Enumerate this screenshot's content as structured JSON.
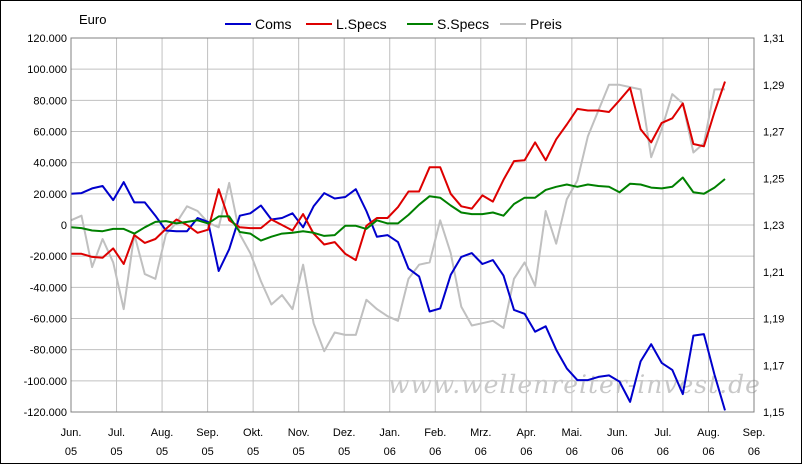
{
  "chart_data": {
    "type": "line",
    "unit_label": "Euro",
    "watermark": "www.wellenreiter-invest.de",
    "x_ticks": [
      {
        "month": "Jun.",
        "year": "05"
      },
      {
        "month": "Jul.",
        "year": "05"
      },
      {
        "month": "Aug.",
        "year": "05"
      },
      {
        "month": "Sep.",
        "year": "05"
      },
      {
        "month": "Okt.",
        "year": "05"
      },
      {
        "month": "Nov.",
        "year": "05"
      },
      {
        "month": "Dez.",
        "year": "05"
      },
      {
        "month": "Jan.",
        "year": "06"
      },
      {
        "month": "Feb.",
        "year": "06"
      },
      {
        "month": "Mrz.",
        "year": "06"
      },
      {
        "month": "Apr.",
        "year": "06"
      },
      {
        "month": "Mai.",
        "year": "06"
      },
      {
        "month": "Jun.",
        "year": "06"
      },
      {
        "month": "Jul.",
        "year": "06"
      },
      {
        "month": "Aug.",
        "year": "06"
      },
      {
        "month": "Sep.",
        "year": "06"
      }
    ],
    "y_left": {
      "min": -120000,
      "max": 120000,
      "ticks": [
        "-120.000",
        "-100.000",
        "-80.000",
        "-60.000",
        "-40.000",
        "-20.000",
        "0",
        "20.000",
        "40.000",
        "60.000",
        "80.000",
        "100.000",
        "120.000"
      ]
    },
    "y_right": {
      "min": 1.15,
      "max": 1.31,
      "ticks": [
        "1,15",
        "1,17",
        "1,19",
        "1,21",
        "1,23",
        "1,25",
        "1,27",
        "1,29",
        "1,31"
      ]
    },
    "grid": true,
    "legend_position": "top",
    "series": [
      {
        "name": "Coms",
        "color": "#0000cc",
        "axis": "left",
        "values": [
          20000,
          20500,
          23500,
          25000,
          16000,
          27500,
          14500,
          14500,
          6000,
          -3500,
          -4000,
          -4000,
          4500,
          2000,
          -29500,
          -15500,
          6000,
          7500,
          12500,
          3500,
          4500,
          7500,
          -1500,
          12000,
          20500,
          17000,
          18000,
          23000,
          9000,
          -7500,
          -6500,
          -11000,
          -28000,
          -33000,
          -55500,
          -53500,
          -32000,
          -20500,
          -18000,
          -25000,
          -22500,
          -32500,
          -54500,
          -57000,
          -68500,
          -65000,
          -80000,
          -92000,
          -99500,
          -99500,
          -97500,
          -96500,
          -100500,
          -113500,
          -87500,
          -76500,
          -88500,
          -93000,
          -108500,
          -71000,
          -70000,
          -96000,
          -119000
        ]
      },
      {
        "name": "L.Specs",
        "color": "#dd0000",
        "axis": "left",
        "values": [
          -18500,
          -18500,
          -20500,
          -21000,
          -15000,
          -25000,
          -6500,
          -11500,
          -9000,
          -2500,
          3500,
          0,
          -5000,
          -3000,
          23000,
          3000,
          -1500,
          -2000,
          -2000,
          3500,
          0,
          -3500,
          7000,
          -5500,
          -12500,
          -11000,
          -18500,
          -22500,
          -500,
          4500,
          4500,
          11500,
          21500,
          21500,
          37000,
          37000,
          20000,
          12000,
          10500,
          19000,
          15000,
          29000,
          41000,
          41500,
          53000,
          41500,
          55000,
          64500,
          74500,
          73500,
          73500,
          72500,
          80000,
          88000,
          61500,
          53000,
          65500,
          68500,
          78000,
          52000,
          50500,
          72500,
          92000
        ]
      },
      {
        "name": "S.Specs",
        "color": "#008000",
        "axis": "left",
        "values": [
          -1500,
          -2000,
          -3500,
          -4000,
          -2500,
          -2500,
          -5500,
          -1500,
          2000,
          2500,
          1000,
          2000,
          3000,
          1000,
          5500,
          5500,
          -4500,
          -5500,
          -10000,
          -7500,
          -5500,
          -5000,
          -4000,
          -5000,
          -7000,
          -6500,
          -500,
          -500,
          -2500,
          3000,
          1000,
          1000,
          6500,
          13000,
          18500,
          17500,
          12500,
          8000,
          7000,
          7000,
          8000,
          6000,
          13500,
          17500,
          17500,
          22500,
          24500,
          26000,
          24500,
          26000,
          25000,
          24500,
          21000,
          26500,
          26000,
          24000,
          23500,
          24500,
          30500,
          21000,
          20000,
          24000,
          29500
        ]
      },
      {
        "name": "Preis",
        "color": "#c0c0c0",
        "axis": "right",
        "values": [
          1.232,
          1.234,
          1.212,
          1.224,
          1.214,
          1.194,
          1.226,
          1.209,
          1.207,
          1.226,
          1.231,
          1.238,
          1.236,
          1.231,
          1.229,
          1.248,
          1.226,
          1.218,
          1.206,
          1.196,
          1.2,
          1.194,
          1.213,
          1.188,
          1.176,
          1.184,
          1.183,
          1.183,
          1.198,
          1.194,
          1.191,
          1.189,
          1.207,
          1.213,
          1.214,
          1.232,
          1.218,
          1.195,
          1.187,
          1.188,
          1.189,
          1.186,
          1.207,
          1.214,
          1.204,
          1.236,
          1.222,
          1.241,
          1.249,
          1.268,
          1.279,
          1.29,
          1.29,
          1.289,
          1.288,
          1.259,
          1.271,
          1.286,
          1.282,
          1.261,
          1.265,
          1.288,
          1.288
        ]
      }
    ]
  }
}
